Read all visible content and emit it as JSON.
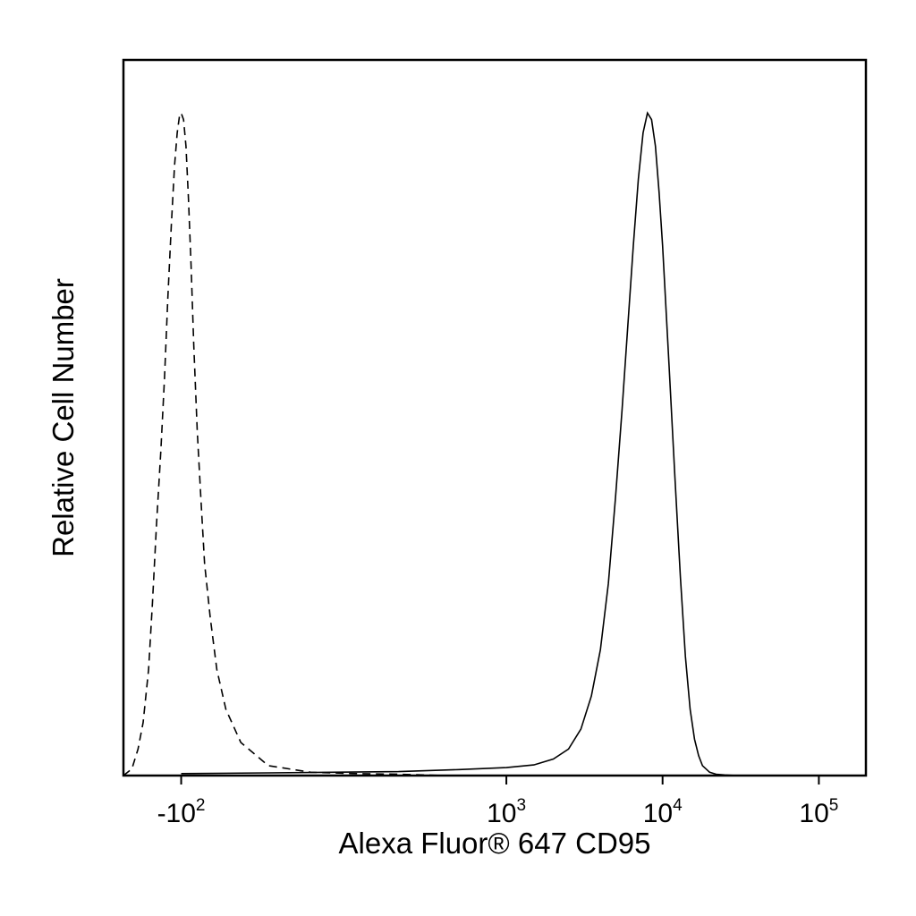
{
  "chart_data": {
    "type": "line",
    "title": "",
    "xlabel": "Alexa Fluor® 647 CD95",
    "ylabel": "Relative Cell Number",
    "x_scale": "biexponential",
    "x_ticks": [
      {
        "value": -100,
        "base": "-10",
        "exp": "2"
      },
      {
        "value": 1000,
        "base": "10",
        "exp": "3"
      },
      {
        "value": 10000,
        "base": "10",
        "exp": "4"
      },
      {
        "value": 100000,
        "base": "10",
        "exp": "5"
      }
    ],
    "xlim": [
      -250,
      200000
    ],
    "ylim": [
      0,
      1.08
    ],
    "grid": false,
    "legend": "none",
    "series": [
      {
        "style": "dashed",
        "color": "#000000",
        "x": [
          -250,
          -220,
          -200,
          -185,
          -170,
          -160,
          -150,
          -140,
          -132,
          -125,
          -118,
          -112,
          -107,
          -103,
          -100,
          -96,
          -92,
          -88,
          -84,
          -80,
          -75,
          -70,
          -65,
          -58,
          -50,
          -40,
          -25,
          0,
          40,
          100,
          200,
          300,
          400
        ],
        "y": [
          0.0,
          0.01,
          0.04,
          0.08,
          0.16,
          0.26,
          0.38,
          0.49,
          0.6,
          0.72,
          0.83,
          0.92,
          0.97,
          0.995,
          1.0,
          0.99,
          0.95,
          0.87,
          0.77,
          0.65,
          0.52,
          0.42,
          0.32,
          0.24,
          0.16,
          0.1,
          0.05,
          0.015,
          0.005,
          0.003,
          0.002,
          0.001,
          0.0
        ]
      },
      {
        "style": "solid",
        "color": "#000000",
        "x": [
          -100,
          0,
          200,
          500,
          1000,
          1500,
          2000,
          2500,
          3000,
          3500,
          4000,
          4500,
          5000,
          5500,
          6000,
          6500,
          7000,
          7500,
          8000,
          8500,
          9000,
          9500,
          10000,
          11000,
          12000,
          13000,
          14000,
          15000,
          16000,
          17000,
          18000,
          20000,
          22000,
          25000,
          30000
        ],
        "y": [
          0.003,
          0.004,
          0.006,
          0.009,
          0.012,
          0.016,
          0.025,
          0.04,
          0.07,
          0.12,
          0.19,
          0.29,
          0.42,
          0.55,
          0.68,
          0.8,
          0.9,
          0.97,
          1.0,
          0.99,
          0.95,
          0.88,
          0.8,
          0.62,
          0.45,
          0.3,
          0.18,
          0.1,
          0.055,
          0.03,
          0.015,
          0.005,
          0.002,
          0.001,
          0.0
        ]
      }
    ]
  }
}
